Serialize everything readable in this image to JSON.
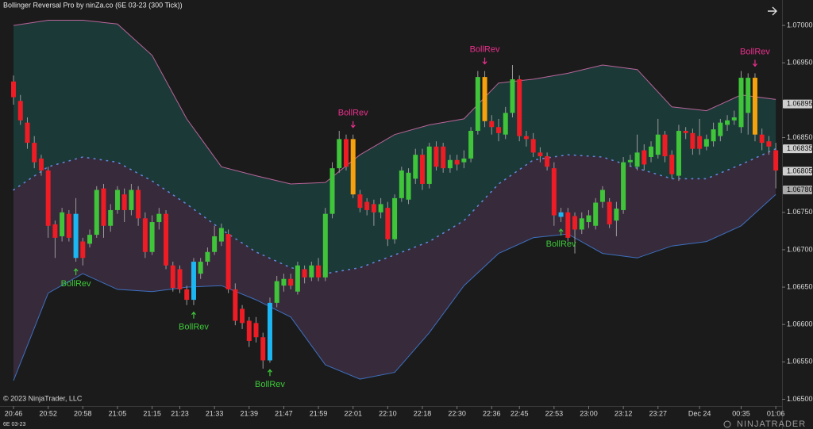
{
  "chart_data": {
    "type": "candlestick",
    "title": "Bollinger Reversal Pro by ninZa.co (6E 03-23 (300 Tick))",
    "copyright": "© 2023 NinjaTrader, LLC",
    "instrument": "6E 03-23",
    "brand": "NINJATRADER",
    "categories": [
      "20:46",
      null,
      null,
      null,
      null,
      "20:52",
      null,
      null,
      null,
      null,
      "20:58",
      null,
      null,
      null,
      null,
      "21:05",
      null,
      null,
      null,
      null,
      "21:15",
      null,
      null,
      null,
      "21:23",
      null,
      null,
      null,
      null,
      "21:33",
      null,
      null,
      null,
      null,
      "21:39",
      null,
      null,
      null,
      null,
      "21:47",
      null,
      null,
      null,
      null,
      "21:59",
      null,
      null,
      null,
      null,
      "22:01",
      null,
      null,
      null,
      null,
      "22:10",
      null,
      null,
      null,
      null,
      "22:18",
      null,
      null,
      null,
      null,
      "22:30",
      null,
      null,
      null,
      null,
      "22:36",
      null,
      null,
      null,
      "22:45",
      null,
      null,
      null,
      null,
      "22:53",
      null,
      null,
      null,
      null,
      "23:00",
      null,
      null,
      null,
      null,
      "23:12",
      null,
      null,
      null,
      null,
      "23:27",
      null,
      null,
      null,
      null,
      null,
      "Dec 24",
      null,
      null,
      null,
      null,
      null,
      "00:35",
      null,
      null,
      null,
      null,
      "01:06"
    ],
    "open": [
      1.06925,
      1.06899,
      1.0687,
      1.06843,
      1.06822,
      1.06806,
      1.06734,
      1.06718,
      1.06748,
      1.06748,
      1.06711,
      1.06708,
      1.0672,
      1.06782,
      1.06732,
      1.06753,
      1.06774,
      1.06753,
      1.0678,
      1.06742,
      1.06697,
      1.06737,
      1.06748,
      1.06679,
      1.06674,
      1.06647,
      1.06633,
      1.06668,
      1.06684,
      1.06697,
      1.06711,
      1.06721,
      1.06647,
      1.06621,
      1.06605,
      1.06602,
      1.06583,
      1.06552,
      1.06629,
      1.06652,
      1.06661,
      1.06644,
      1.06674,
      1.06663,
      1.06679,
      1.06663,
      1.06748,
      1.06809,
      1.06848,
      1.06848,
      1.06774,
      1.06764,
      1.06761,
      1.0675,
      1.06756,
      1.06714,
      1.06769,
      1.06767,
      1.06795,
      1.06827,
      1.06788,
      1.06838,
      1.06838,
      1.06809,
      1.0682,
      1.06817,
      1.06822,
      1.06859,
      1.06931,
      1.06872,
      1.06864,
      1.06854,
      1.06883,
      1.06928,
      1.06852,
      1.06848,
      1.0683,
      1.06825,
      1.06809,
      1.0675,
      1.0675,
      1.06745,
      1.06727,
      1.06737,
      1.06732,
      1.06764,
      1.06764,
      1.06739,
      1.06753,
      1.06817,
      1.06811,
      1.06833,
      1.06824,
      1.06827,
      1.06854,
      1.06827,
      1.06799,
      1.06859,
      1.06856,
      1.06852,
      1.06838,
      1.06845,
      1.06852,
      1.06867,
      1.06873,
      1.06864,
      1.06883,
      1.0693,
      1.06854,
      1.06845,
      1.06833
    ],
    "high": [
      1.06933,
      1.06907,
      1.06877,
      1.06852,
      1.06827,
      1.06811,
      1.06739,
      1.06756,
      1.06753,
      1.06769,
      1.06716,
      1.06727,
      1.06785,
      1.06788,
      1.06761,
      1.06785,
      1.06782,
      1.06788,
      1.06785,
      1.0675,
      1.06746,
      1.06756,
      1.06753,
      1.06684,
      1.06679,
      1.06652,
      1.06689,
      1.06689,
      1.06703,
      1.06732,
      1.06735,
      1.06727,
      1.06655,
      1.06626,
      1.0661,
      1.0661,
      1.06589,
      1.06636,
      1.06665,
      1.06668,
      1.06668,
      1.06684,
      1.06679,
      1.06684,
      1.06689,
      1.06756,
      1.06817,
      1.06859,
      1.06854,
      1.06854,
      1.0678,
      1.06769,
      1.06767,
      1.06769,
      1.06764,
      1.06774,
      1.06811,
      1.06809,
      1.06835,
      1.06835,
      1.06843,
      1.06845,
      1.06843,
      1.06827,
      1.06827,
      1.06833,
      1.06864,
      1.06939,
      1.06939,
      1.0688,
      1.06875,
      1.06891,
      1.06947,
      1.06933,
      1.06859,
      1.06856,
      1.06837,
      1.0683,
      1.06817,
      1.06756,
      1.06756,
      1.0675,
      1.0675,
      1.06753,
      1.06769,
      1.06785,
      1.06769,
      1.06764,
      1.06824,
      1.06827,
      1.06854,
      1.06841,
      1.06845,
      1.06875,
      1.06859,
      1.06833,
      1.06867,
      1.06864,
      1.06862,
      1.06875,
      1.06854,
      1.0687,
      1.06875,
      1.0688,
      1.06886,
      1.06939,
      1.06936,
      1.06936,
      1.06862,
      1.06852,
      1.06843
    ],
    "low": [
      1.06894,
      1.06867,
      1.06835,
      1.06809,
      1.06799,
      1.06716,
      1.06689,
      1.06711,
      1.06711,
      1.06684,
      1.06679,
      1.06703,
      1.06716,
      1.06716,
      1.06724,
      1.06748,
      1.06737,
      1.06746,
      1.06732,
      1.06689,
      1.06693,
      1.06727,
      1.06674,
      1.06644,
      1.06642,
      1.06626,
      1.06626,
      1.06661,
      1.06679,
      1.06693,
      1.06705,
      1.06642,
      1.06599,
      1.06594,
      1.0657,
      1.06576,
      1.06541,
      1.06549,
      1.06623,
      1.06644,
      1.06647,
      1.0664,
      1.06655,
      1.06658,
      1.06658,
      1.06658,
      1.06742,
      1.06803,
      1.06806,
      1.06769,
      1.0675,
      1.06746,
      1.06732,
      1.06742,
      1.06705,
      1.06708,
      1.06764,
      1.06761,
      1.06788,
      1.0678,
      1.06782,
      1.06806,
      1.06803,
      1.06803,
      1.06806,
      1.06809,
      1.06817,
      1.06854,
      1.06864,
      1.06854,
      1.06845,
      1.06848,
      1.06877,
      1.06845,
      1.06838,
      1.06824,
      1.06817,
      1.06806,
      1.06732,
      1.06737,
      1.06711,
      1.06695,
      1.06721,
      1.06729,
      1.06727,
      1.06756,
      1.06729,
      1.06718,
      1.06748,
      1.06811,
      1.06806,
      1.06806,
      1.06817,
      1.06822,
      1.06817,
      1.06795,
      1.06792,
      1.06848,
      1.06827,
      1.06827,
      1.06833,
      1.06838,
      1.06845,
      1.06859,
      1.06867,
      1.06856,
      1.06854,
      1.06845,
      1.06833,
      1.06827,
      1.06782
    ],
    "close": [
      1.06904,
      1.06873,
      1.06843,
      1.06817,
      1.06806,
      1.06732,
      1.06716,
      1.0675,
      1.06716,
      1.06689,
      1.06689,
      1.0672,
      1.0678,
      1.06732,
      1.06753,
      1.0678,
      1.06753,
      1.0678,
      1.06742,
      1.06697,
      1.06737,
      1.06748,
      1.06679,
      1.06649,
      1.06647,
      1.06633,
      1.06684,
      1.06684,
      1.06697,
      1.06718,
      1.06729,
      1.06647,
      1.06605,
      1.06602,
      1.06578,
      1.06583,
      1.06552,
      1.06629,
      1.06658,
      1.06661,
      1.06652,
      1.06679,
      1.06663,
      1.06679,
      1.06663,
      1.06748,
      1.06809,
      1.06848,
      1.06811,
      1.06774,
      1.06756,
      1.06753,
      1.0675,
      1.06761,
      1.06714,
      1.06769,
      1.06806,
      1.06803,
      1.06827,
      1.06788,
      1.06838,
      1.06811,
      1.06809,
      1.0682,
      1.06814,
      1.06822,
      1.06859,
      1.06931,
      1.06872,
      1.06864,
      1.06856,
      1.06883,
      1.06928,
      1.06852,
      1.06848,
      1.0683,
      1.06825,
      1.06811,
      1.06746,
      1.06744,
      1.06716,
      1.06727,
      1.06742,
      1.06746,
      1.06763,
      1.0678,
      1.06734,
      1.06755,
      1.06817,
      1.0682,
      1.0683,
      1.06814,
      1.06838,
      1.06854,
      1.06825,
      1.06801,
      1.06859,
      1.06856,
      1.06835,
      1.06835,
      1.06848,
      1.06861,
      1.0687,
      1.06873,
      1.06877,
      1.0693,
      1.0693,
      1.06854,
      1.06843,
      1.06838,
      1.06806
    ],
    "bull_color": "#3fc43a",
    "bear_color": "#ee1c25",
    "bands": {
      "x": [
        0,
        5,
        10,
        15,
        20,
        25,
        30,
        35,
        40,
        45,
        50,
        55,
        60,
        65,
        70,
        75,
        80,
        85,
        90,
        95,
        100,
        105,
        110
      ],
      "upper": [
        1.07,
        1.07007,
        1.07007,
        1.07002,
        1.0696,
        1.06875,
        1.06811,
        1.06799,
        1.06788,
        1.0679,
        1.06827,
        1.06854,
        1.06867,
        1.06875,
        1.06923,
        1.06928,
        1.06936,
        1.06947,
        1.06941,
        1.06891,
        1.06886,
        1.06907,
        1.06901
      ],
      "middle": [
        1.0678,
        1.06811,
        1.06824,
        1.06817,
        1.06792,
        1.06761,
        1.06727,
        1.06697,
        1.06676,
        1.06668,
        1.06676,
        1.06693,
        1.06711,
        1.06739,
        1.06788,
        1.0682,
        1.06827,
        1.06824,
        1.06809,
        1.06795,
        1.06795,
        1.06814,
        1.06835
      ],
      "lower": [
        1.06525,
        1.06642,
        1.06668,
        1.06647,
        1.06644,
        1.0665,
        1.06652,
        1.06633,
        1.0661,
        1.06546,
        1.06527,
        1.06536,
        1.06589,
        1.06652,
        1.06695,
        1.06716,
        1.06721,
        1.06695,
        1.06689,
        1.06705,
        1.06711,
        1.06732,
        1.06774
      ],
      "upper_color": "#b9659a",
      "middle_color": "#5f86d6",
      "lower_color": "#3d70c0",
      "upper_fill": "#1b3937",
      "lower_fill": "#372a3a"
    },
    "long_signals": {
      "indices": [
        9,
        26,
        37,
        79
      ],
      "labels": [
        "BollRev",
        "BollRev",
        "BollRev",
        "BollRev"
      ],
      "bar_color": "#1cb6f2",
      "label_color": "#3ec83a"
    },
    "short_signals": {
      "indices": [
        49,
        68,
        107
      ],
      "labels": [
        "BollRev",
        "BollRev",
        "BollRev"
      ],
      "bar_color": "#f7a20c",
      "label_color": "#ea2f8c"
    },
    "price_markers": [
      {
        "value": 1.06895,
        "label": "1.06895"
      },
      {
        "value": 1.06835,
        "label": "1.06835"
      },
      {
        "value": 1.06805,
        "label": "1.06805"
      },
      {
        "value": 1.0678,
        "label": "1.06780"
      }
    ],
    "xlim": [
      -1.95,
      110.9
    ],
    "ylim": [
      1.06491,
      1.07034
    ],
    "yticks": [
      {
        "value": 1.07,
        "label": "1.07000"
      },
      {
        "value": 1.0695,
        "label": "1.06950"
      },
      {
        "value": 1.0685,
        "label": "1.06850"
      },
      {
        "value": 1.0675,
        "label": "1.06750"
      },
      {
        "value": 1.067,
        "label": "1.06700"
      },
      {
        "value": 1.0665,
        "label": "1.06650"
      },
      {
        "value": 1.066,
        "label": "1.06600"
      },
      {
        "value": 1.0655,
        "label": "1.06550"
      },
      {
        "value": 1.065,
        "label": "1.06500"
      }
    ]
  }
}
